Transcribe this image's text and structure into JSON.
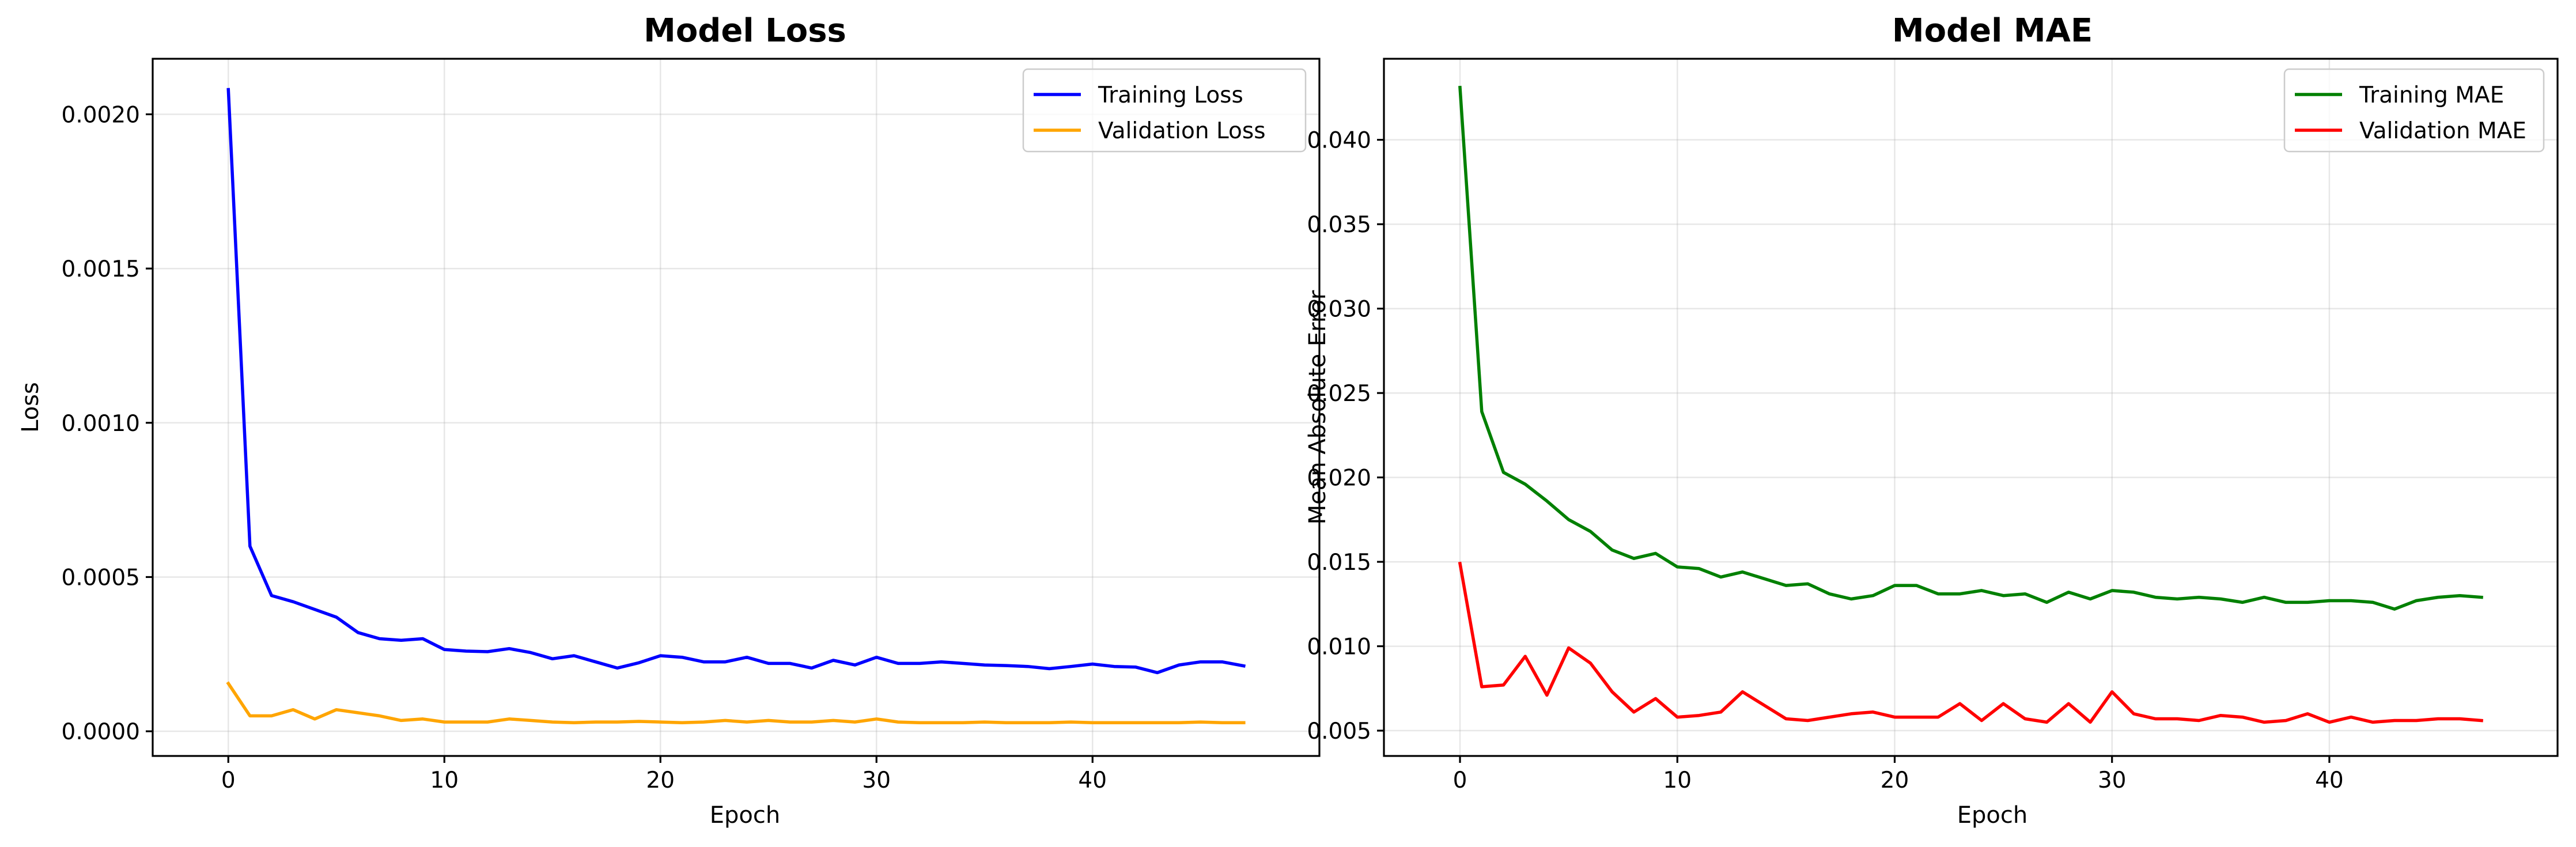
{
  "chart_data": [
    {
      "type": "line",
      "title": "Model Loss",
      "xlabel": "Epoch",
      "ylabel": "Loss",
      "xlim": [
        -3.5,
        50.5
      ],
      "ylim": [
        -8e-05,
        0.00218
      ],
      "xticks": [
        0,
        10,
        20,
        30,
        40
      ],
      "xtick_labels": [
        "0",
        "10",
        "20",
        "30",
        "40"
      ],
      "yticks": [
        0,
        0.0005,
        0.001,
        0.0015,
        0.002
      ],
      "ytick_labels": [
        "0.0000",
        "0.0005",
        "0.0010",
        "0.0015",
        "0.0020"
      ],
      "grid": true,
      "legend": "top-right",
      "x": [
        0,
        1,
        2,
        3,
        4,
        5,
        6,
        7,
        8,
        9,
        10,
        11,
        12,
        13,
        14,
        15,
        16,
        17,
        18,
        19,
        20,
        21,
        22,
        23,
        24,
        25,
        26,
        27,
        28,
        29,
        30,
        31,
        32,
        33,
        34,
        35,
        36,
        37,
        38,
        39,
        40,
        41,
        42,
        43,
        44,
        45,
        46,
        47
      ],
      "series": [
        {
          "name": "Training Loss",
          "color": "#0000ff",
          "values": [
            0.00208,
            0.0006,
            0.00044,
            0.00042,
            0.000395,
            0.00037,
            0.00032,
            0.0003,
            0.000295,
            0.0003,
            0.000265,
            0.00026,
            0.000258,
            0.000268,
            0.000255,
            0.000235,
            0.000245,
            0.000225,
            0.000205,
            0.000222,
            0.000245,
            0.00024,
            0.000225,
            0.000225,
            0.00024,
            0.00022,
            0.00022,
            0.000205,
            0.00023,
            0.000215,
            0.00024,
            0.00022,
            0.00022,
            0.000225,
            0.00022,
            0.000215,
            0.000213,
            0.00021,
            0.000203,
            0.00021,
            0.000218,
            0.00021,
            0.000208,
            0.00019,
            0.000215,
            0.000225,
            0.000225,
            0.000212
          ]
        },
        {
          "name": "Validation Loss",
          "color": "#ffa500",
          "values": [
            0.000155,
            5e-05,
            5e-05,
            7e-05,
            4e-05,
            7e-05,
            6e-05,
            5e-05,
            3.5e-05,
            4e-05,
            3e-05,
            3e-05,
            3e-05,
            4e-05,
            3.5e-05,
            3e-05,
            2.8e-05,
            3e-05,
            3e-05,
            3.2e-05,
            3e-05,
            2.8e-05,
            3e-05,
            3.5e-05,
            3e-05,
            3.5e-05,
            3e-05,
            3e-05,
            3.5e-05,
            3e-05,
            4e-05,
            3e-05,
            2.8e-05,
            2.8e-05,
            2.8e-05,
            3e-05,
            2.8e-05,
            2.8e-05,
            2.8e-05,
            3e-05,
            2.8e-05,
            2.8e-05,
            2.8e-05,
            2.8e-05,
            2.8e-05,
            3e-05,
            2.8e-05,
            2.8e-05
          ]
        }
      ]
    },
    {
      "type": "line",
      "title": "Model MAE",
      "xlabel": "Epoch",
      "ylabel": "Mean Absolute Error",
      "xlim": [
        -3.5,
        50.5
      ],
      "ylim": [
        0.0035,
        0.0448
      ],
      "xticks": [
        0,
        10,
        20,
        30,
        40
      ],
      "xtick_labels": [
        "0",
        "10",
        "20",
        "30",
        "40"
      ],
      "yticks": [
        0.005,
        0.01,
        0.015,
        0.02,
        0.025,
        0.03,
        0.035,
        0.04
      ],
      "ytick_labels": [
        "0.005",
        "0.010",
        "0.015",
        "0.020",
        "0.025",
        "0.030",
        "0.035",
        "0.040"
      ],
      "grid": true,
      "legend": "top-right",
      "x": [
        0,
        1,
        2,
        3,
        4,
        5,
        6,
        7,
        8,
        9,
        10,
        11,
        12,
        13,
        14,
        15,
        16,
        17,
        18,
        19,
        20,
        21,
        22,
        23,
        24,
        25,
        26,
        27,
        28,
        29,
        30,
        31,
        32,
        33,
        34,
        35,
        36,
        37,
        38,
        39,
        40,
        41,
        42,
        43,
        44,
        45,
        46,
        47
      ],
      "series": [
        {
          "name": "Training MAE",
          "color": "#008000",
          "values": [
            0.0431,
            0.0239,
            0.0203,
            0.0196,
            0.0186,
            0.0175,
            0.0168,
            0.0157,
            0.0152,
            0.0155,
            0.0147,
            0.0146,
            0.0141,
            0.0144,
            0.014,
            0.0136,
            0.0137,
            0.0131,
            0.0128,
            0.013,
            0.0136,
            0.0136,
            0.0131,
            0.0131,
            0.0133,
            0.013,
            0.0131,
            0.0126,
            0.0132,
            0.0128,
            0.0133,
            0.0132,
            0.0129,
            0.0128,
            0.0129,
            0.0128,
            0.0126,
            0.0129,
            0.0126,
            0.0126,
            0.0127,
            0.0127,
            0.0126,
            0.0122,
            0.0127,
            0.0129,
            0.013,
            0.0129
          ]
        },
        {
          "name": "Validation MAE",
          "color": "#ff0000",
          "values": [
            0.0149,
            0.0076,
            0.0077,
            0.0094,
            0.0071,
            0.0099,
            0.009,
            0.0073,
            0.0061,
            0.0069,
            0.0058,
            0.0059,
            0.0061,
            0.0073,
            0.0065,
            0.0057,
            0.0056,
            0.0058,
            0.006,
            0.0061,
            0.0058,
            0.0058,
            0.0058,
            0.0066,
            0.0056,
            0.0066,
            0.0057,
            0.0055,
            0.0066,
            0.0055,
            0.0073,
            0.006,
            0.0057,
            0.0057,
            0.0056,
            0.0059,
            0.0058,
            0.0055,
            0.0056,
            0.006,
            0.0055,
            0.0058,
            0.0055,
            0.0056,
            0.0056,
            0.0057,
            0.0057,
            0.0056
          ]
        }
      ]
    }
  ]
}
